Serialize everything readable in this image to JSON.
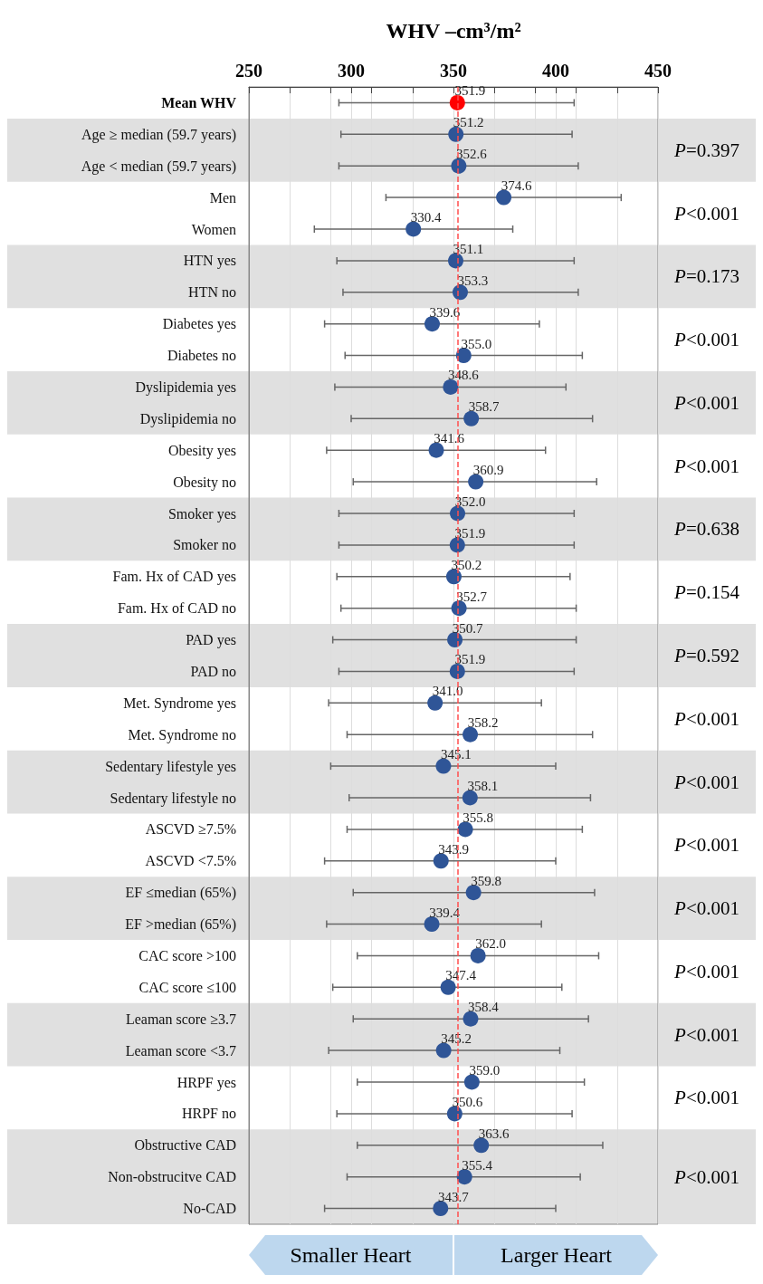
{
  "chart_data": {
    "type": "scatter",
    "orientation": "horizontal",
    "xlabel": "WHV –cm³/m²",
    "categories": [
      "Mean WHV",
      "Age ≥ median (59.7 years)",
      "Age < median (59.7 years)",
      "Men",
      "Women",
      "HTN yes",
      "HTN no",
      "Diabetes yes",
      "Diabetes no",
      "Dyslipidemia yes",
      "Dyslipidemia no",
      "Obesity yes",
      "Obesity no",
      "Smoker yes",
      "Smoker no",
      "Fam. Hx of CAD yes",
      "Fam. Hx of CAD no",
      "PAD yes",
      "PAD no",
      "Met. Syndrome yes",
      "Met. Syndrome no",
      "Sedentary lifestyle yes",
      "Sedentary lifestyle no",
      "ASCVD ≥7.5%",
      "ASCVD <7.5%",
      "EF ≤median (65%)",
      "EF >median (65%)",
      "CAC score >100",
      "CAC score ≤100",
      "Leaman score ≥3.7",
      "Leaman score <3.7",
      "HRPF yes",
      "HRPF no",
      "Obstructive CAD",
      "Non-obstrucitve CAD",
      "No-CAD"
    ],
    "series": [
      {
        "colors": [
          "#ff0000",
          "#2f5597",
          "#2f5597",
          "#2f5597",
          "#2f5597",
          "#2f5597",
          "#2f5597",
          "#2f5597",
          "#2f5597",
          "#2f5597",
          "#2f5597",
          "#2f5597",
          "#2f5597",
          "#2f5597",
          "#2f5597",
          "#2f5597",
          "#2f5597",
          "#2f5597",
          "#2f5597",
          "#2f5597",
          "#2f5597",
          "#2f5597",
          "#2f5597",
          "#2f5597",
          "#2f5597",
          "#2f5597",
          "#2f5597",
          "#2f5597",
          "#2f5597",
          "#2f5597",
          "#2f5597",
          "#2f5597",
          "#2f5597",
          "#2f5597",
          "#2f5597",
          "#2f5597"
        ],
        "values": [
          351.9,
          351.2,
          352.6,
          374.6,
          330.4,
          351.1,
          353.3,
          339.6,
          355.0,
          348.6,
          358.7,
          341.6,
          360.9,
          352.0,
          351.9,
          350.2,
          352.7,
          350.7,
          351.9,
          341.0,
          358.2,
          345.1,
          358.1,
          355.8,
          343.9,
          359.8,
          339.4,
          362.0,
          347.4,
          358.4,
          345.2,
          359.0,
          350.6,
          363.6,
          355.4,
          343.7
        ],
        "value_labels": [
          "351.9",
          "351.2",
          "352.6",
          "374.6",
          "330.4",
          "351.1",
          "353.3",
          "339.6",
          "355.0",
          "348.6",
          "358.7",
          "341.6",
          "360.9",
          "352.0",
          "351.9",
          "350.2",
          "352.7",
          "350.7",
          "351.9",
          "341.0",
          "358.2",
          "345.1",
          "358.1",
          "355.8",
          "343.9",
          "359.8",
          "339.4",
          "362.0",
          "347.4",
          "358.4",
          "345.2",
          "359.0",
          "350.6",
          "363.6",
          "355.4",
          "343.7"
        ],
        "errors": [
          [
            294,
            409
          ],
          [
            295,
            408
          ],
          [
            294,
            411
          ],
          [
            317,
            432
          ],
          [
            282,
            379
          ],
          [
            293,
            409
          ],
          [
            296,
            411
          ],
          [
            287,
            392
          ],
          [
            297,
            413
          ],
          [
            292,
            405
          ],
          [
            300,
            418
          ],
          [
            288,
            395
          ],
          [
            301,
            420
          ],
          [
            294,
            409
          ],
          [
            294,
            409
          ],
          [
            293,
            407
          ],
          [
            295,
            410
          ],
          [
            291,
            410
          ],
          [
            294,
            409
          ],
          [
            289,
            393
          ],
          [
            298,
            418
          ],
          [
            290,
            400
          ],
          [
            299,
            417
          ],
          [
            298,
            413
          ],
          [
            287,
            400
          ],
          [
            301,
            419
          ],
          [
            288,
            393
          ],
          [
            303,
            421
          ],
          [
            291,
            403
          ],
          [
            301,
            416
          ],
          [
            289,
            402
          ],
          [
            303,
            414
          ],
          [
            293,
            408
          ],
          [
            303,
            423
          ],
          [
            298,
            412
          ],
          [
            287,
            400
          ]
        ]
      }
    ],
    "xlim": [
      250,
      450
    ],
    "xticks": [
      250,
      {
        "value": 270,
        "label": null
      },
      {
        "value": 290,
        "label": null
      },
      300,
      {
        "value": 310,
        "label": null
      },
      {
        "value": 330,
        "label": null
      },
      350,
      {
        "value": 370,
        "label": null
      },
      {
        "value": 390,
        "label": null
      },
      400,
      {
        "value": 410,
        "label": null
      },
      {
        "value": 430,
        "label": null
      },
      450
    ],
    "grid": "x",
    "marker": "circle",
    "ref_lines": [
      {
        "axis": "x",
        "value": 351.9,
        "color": "#ff4d4d",
        "line_style": "dashed"
      }
    ],
    "bands": [
      {
        "axis": "y",
        "from": "Age ≥ median (59.7 years)",
        "to": "Age < median (59.7 years)",
        "label": "P=0.397",
        "color": "#e0e0e0"
      },
      {
        "axis": "y",
        "from": "HTN yes",
        "to": "HTN no",
        "label": "P=0.173",
        "color": "#e0e0e0"
      },
      {
        "axis": "y",
        "from": "Dyslipidemia yes",
        "to": "Dyslipidemia no",
        "label": "P<0.001",
        "color": "#e0e0e0"
      },
      {
        "axis": "y",
        "from": "Smoker yes",
        "to": "Smoker no",
        "label": "P=0.638",
        "color": "#e0e0e0"
      },
      {
        "axis": "y",
        "from": "PAD yes",
        "to": "PAD no",
        "label": "P=0.592",
        "color": "#e0e0e0"
      },
      {
        "axis": "y",
        "from": "Sedentary lifestyle yes",
        "to": "Sedentary lifestyle no",
        "label": "P<0.001",
        "color": "#e0e0e0"
      },
      {
        "axis": "y",
        "from": "EF ≤median (65%)",
        "to": "EF >median (65%)",
        "label": "P<0.001",
        "color": "#e0e0e0"
      },
      {
        "axis": "y",
        "from": "Leaman score ≥3.7",
        "to": "Leaman score <3.7",
        "label": "P<0.001",
        "color": "#e0e0e0"
      },
      {
        "axis": "y",
        "from": "Obstructive CAD",
        "to": "No-CAD",
        "label": "P<0.001",
        "color": "#e0e0e0"
      }
    ],
    "annotations": [
      "P<0.001",
      "P<0.001",
      "P<0.001",
      "P=0.154",
      "P<0.001",
      "P<0.001",
      "P<0.001",
      "P<0.001",
      "Smaller Heart",
      "Larger Heart"
    ]
  }
}
